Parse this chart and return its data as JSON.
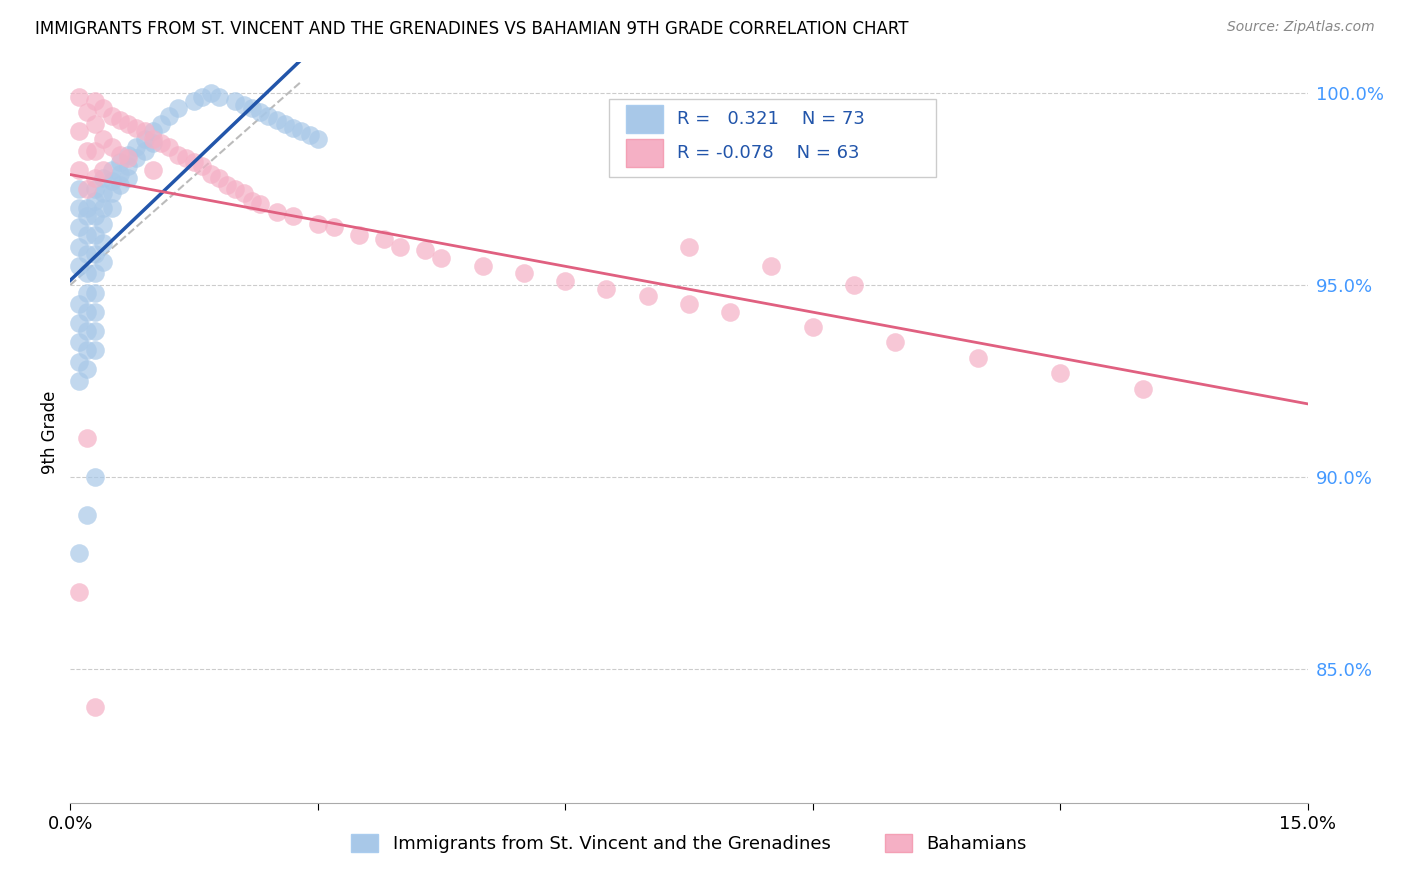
{
  "title": "IMMIGRANTS FROM ST. VINCENT AND THE GRENADINES VS BAHAMIAN 9TH GRADE CORRELATION CHART",
  "source": "Source: ZipAtlas.com",
  "ylabel": "9th Grade",
  "xmin": 0.0,
  "xmax": 0.15,
  "ymin": 0.815,
  "ymax": 1.008,
  "ytick_right_positions": [
    1.0,
    0.95,
    0.9,
    0.85
  ],
  "ytick_right_labels": [
    "100.0%",
    "95.0%",
    "90.0%",
    "85.0%"
  ],
  "legend_r_blue": "R =   0.321",
  "legend_n_blue": "N = 73",
  "legend_r_pink": "R = -0.078",
  "legend_n_pink": "N = 63",
  "legend_blue_label": "Immigrants from St. Vincent and the Grenadines",
  "legend_pink_label": "Bahamians",
  "blue_fill": "#a8c8e8",
  "blue_line": "#2255aa",
  "pink_fill": "#f5b0c5",
  "pink_line": "#e06080",
  "dash_color": "#bbbbbb",
  "grid_color": "#cccccc",
  "right_axis_color": "#4499ff",
  "title_fontsize": 12,
  "source_fontsize": 10,
  "tick_fontsize": 13,
  "legend_fontsize": 13,
  "blue_scatter_x": [
    0.001,
    0.001,
    0.001,
    0.001,
    0.001,
    0.001,
    0.001,
    0.001,
    0.001,
    0.001,
    0.002,
    0.002,
    0.002,
    0.002,
    0.002,
    0.002,
    0.002,
    0.002,
    0.002,
    0.002,
    0.003,
    0.003,
    0.003,
    0.003,
    0.003,
    0.003,
    0.003,
    0.003,
    0.003,
    0.003,
    0.004,
    0.004,
    0.004,
    0.004,
    0.004,
    0.004,
    0.005,
    0.005,
    0.005,
    0.005,
    0.006,
    0.006,
    0.006,
    0.007,
    0.007,
    0.007,
    0.008,
    0.008,
    0.009,
    0.009,
    0.01,
    0.01,
    0.011,
    0.012,
    0.013,
    0.015,
    0.016,
    0.017,
    0.018,
    0.02,
    0.021,
    0.022,
    0.023,
    0.024,
    0.025,
    0.026,
    0.027,
    0.028,
    0.029,
    0.03,
    0.001,
    0.002,
    0.003
  ],
  "blue_scatter_y": [
    0.96,
    0.965,
    0.97,
    0.975,
    0.955,
    0.945,
    0.94,
    0.935,
    0.93,
    0.925,
    0.97,
    0.968,
    0.963,
    0.958,
    0.953,
    0.948,
    0.943,
    0.938,
    0.933,
    0.928,
    0.975,
    0.972,
    0.968,
    0.963,
    0.958,
    0.953,
    0.948,
    0.943,
    0.938,
    0.933,
    0.978,
    0.974,
    0.97,
    0.966,
    0.961,
    0.956,
    0.98,
    0.977,
    0.974,
    0.97,
    0.982,
    0.979,
    0.976,
    0.984,
    0.981,
    0.978,
    0.986,
    0.983,
    0.988,
    0.985,
    0.99,
    0.987,
    0.992,
    0.994,
    0.996,
    0.998,
    0.999,
    1.0,
    0.999,
    0.998,
    0.997,
    0.996,
    0.995,
    0.994,
    0.993,
    0.992,
    0.991,
    0.99,
    0.989,
    0.988,
    0.88,
    0.89,
    0.9
  ],
  "pink_scatter_x": [
    0.001,
    0.001,
    0.001,
    0.002,
    0.002,
    0.002,
    0.003,
    0.003,
    0.003,
    0.003,
    0.004,
    0.004,
    0.004,
    0.005,
    0.005,
    0.006,
    0.006,
    0.007,
    0.007,
    0.008,
    0.009,
    0.01,
    0.01,
    0.011,
    0.012,
    0.013,
    0.014,
    0.015,
    0.016,
    0.017,
    0.018,
    0.019,
    0.02,
    0.021,
    0.022,
    0.023,
    0.025,
    0.027,
    0.03,
    0.032,
    0.035,
    0.038,
    0.04,
    0.043,
    0.045,
    0.05,
    0.055,
    0.06,
    0.065,
    0.07,
    0.075,
    0.08,
    0.09,
    0.1,
    0.11,
    0.12,
    0.13,
    0.075,
    0.085,
    0.095,
    0.001,
    0.002,
    0.003
  ],
  "pink_scatter_y": [
    0.999,
    0.99,
    0.98,
    0.995,
    0.985,
    0.975,
    0.998,
    0.992,
    0.985,
    0.978,
    0.996,
    0.988,
    0.98,
    0.994,
    0.986,
    0.993,
    0.984,
    0.992,
    0.983,
    0.991,
    0.99,
    0.988,
    0.98,
    0.987,
    0.986,
    0.984,
    0.983,
    0.982,
    0.981,
    0.979,
    0.978,
    0.976,
    0.975,
    0.974,
    0.972,
    0.971,
    0.969,
    0.968,
    0.966,
    0.965,
    0.963,
    0.962,
    0.96,
    0.959,
    0.957,
    0.955,
    0.953,
    0.951,
    0.949,
    0.947,
    0.945,
    0.943,
    0.939,
    0.935,
    0.931,
    0.927,
    0.923,
    0.96,
    0.955,
    0.95,
    0.87,
    0.91,
    0.84
  ]
}
